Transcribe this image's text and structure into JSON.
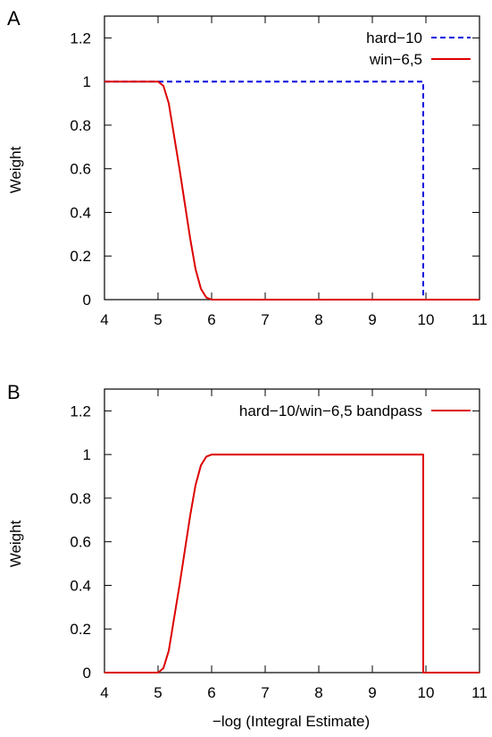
{
  "chart_data": [
    {
      "panel": "A",
      "type": "line",
      "title": "",
      "xlabel": "",
      "ylabel": "Weight",
      "xlim": [
        4,
        11
      ],
      "ylim": [
        0,
        1.3
      ],
      "xticks": [
        "4",
        "5",
        "6",
        "7",
        "8",
        "9",
        "10",
        "11"
      ],
      "yticks": [
        "0",
        "0.2",
        "0.4",
        "0.6",
        "0.8",
        "1",
        "1.2"
      ],
      "grid": false,
      "legend_position": "top-right",
      "series": [
        {
          "name": "hard−10",
          "color": "#0000dd",
          "dash": "dashed",
          "x": [
            4,
            9.95,
            9.95,
            11
          ],
          "y": [
            1,
            1,
            0,
            0
          ]
        },
        {
          "name": "win−6,5",
          "color": "#dd0000",
          "dash": "solid",
          "x": [
            4,
            5.0,
            5.1,
            5.2,
            5.3,
            5.4,
            5.5,
            5.6,
            5.7,
            5.8,
            5.9,
            6.0,
            11
          ],
          "y": [
            1,
            1,
            0.98,
            0.9,
            0.75,
            0.6,
            0.44,
            0.28,
            0.14,
            0.05,
            0.01,
            0,
            0
          ]
        }
      ]
    },
    {
      "panel": "B",
      "type": "line",
      "title": "",
      "xlabel": "−log (Integral Estimate)",
      "ylabel": "Weight",
      "xlim": [
        4,
        11
      ],
      "ylim": [
        0,
        1.3
      ],
      "xticks": [
        "4",
        "5",
        "6",
        "7",
        "8",
        "9",
        "10",
        "11"
      ],
      "yticks": [
        "0",
        "0.2",
        "0.4",
        "0.6",
        "0.8",
        "1",
        "1.2"
      ],
      "grid": false,
      "legend_position": "top-right",
      "series": [
        {
          "name": "hard−10/win−6,5 bandpass",
          "color": "#dd0000",
          "dash": "solid",
          "x": [
            4,
            5.0,
            5.1,
            5.2,
            5.3,
            5.4,
            5.5,
            5.6,
            5.7,
            5.8,
            5.9,
            6.0,
            9.95,
            9.95,
            11
          ],
          "y": [
            0,
            0,
            0.02,
            0.1,
            0.25,
            0.4,
            0.56,
            0.72,
            0.86,
            0.95,
            0.99,
            1,
            1,
            0,
            0
          ]
        }
      ]
    }
  ]
}
